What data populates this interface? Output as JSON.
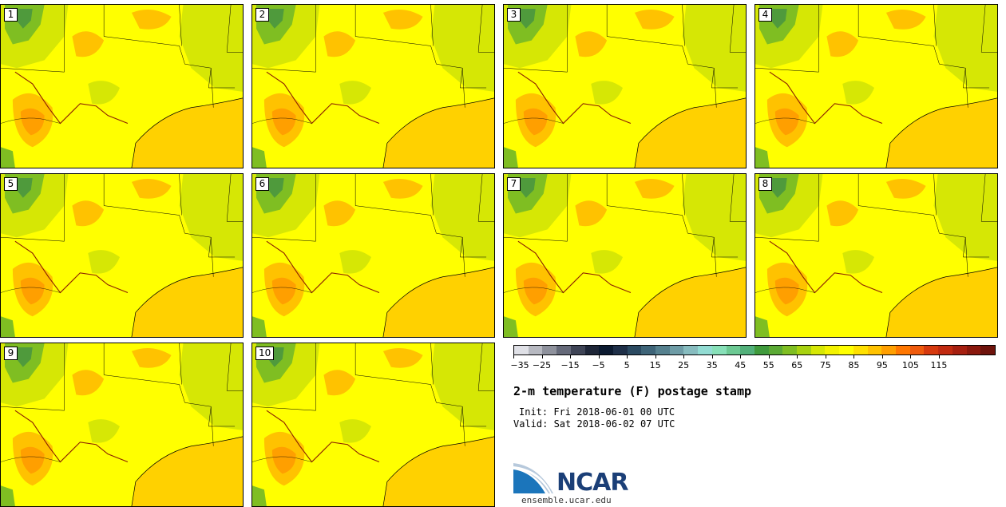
{
  "panels": [
    "1",
    "2",
    "3",
    "4",
    "5",
    "6",
    "7",
    "8",
    "9",
    "10"
  ],
  "legend": {
    "title": "2-m temperature (F) postage stamp",
    "init": "Init: Fri 2018-06-01 00 UTC",
    "valid": "Valid: Sat 2018-06-02 07 UTC",
    "tick_labels": [
      "−35",
      "−25",
      "−15",
      "−5",
      "5",
      "15",
      "25",
      "35",
      "45",
      "55",
      "65",
      "75",
      "85",
      "95",
      "105",
      "115"
    ],
    "bin_colors": [
      "#dfe0e6",
      "#b7b9c1",
      "#8e919c",
      "#656979",
      "#3e4456",
      "#1e2638",
      "#0b1a30",
      "#1e2f48",
      "#2b4a61",
      "#3e6478",
      "#55808e",
      "#6e9ca6",
      "#87bcbf",
      "#92dcd3",
      "#87e0b8",
      "#6cc993",
      "#52b07a",
      "#3f9a3c",
      "#5aa934",
      "#7fbe22",
      "#a8d210",
      "#d6e705",
      "#f3f200",
      "#ffff00",
      "#ffe000",
      "#ffc200",
      "#ff9f00",
      "#ff7700",
      "#ef5a0c",
      "#d6390e",
      "#c12a10",
      "#a61f10",
      "#8a180d",
      "#6e130c"
    ],
    "brand": "NCAR",
    "site": "ensemble.ucar.edu"
  },
  "colors": {
    "land": "#ffff00",
    "gulf": "#ffd100",
    "cool": "#d6e705",
    "green": "#7fbe22",
    "warm": "#ffc200",
    "hot": "#ff9f00"
  }
}
